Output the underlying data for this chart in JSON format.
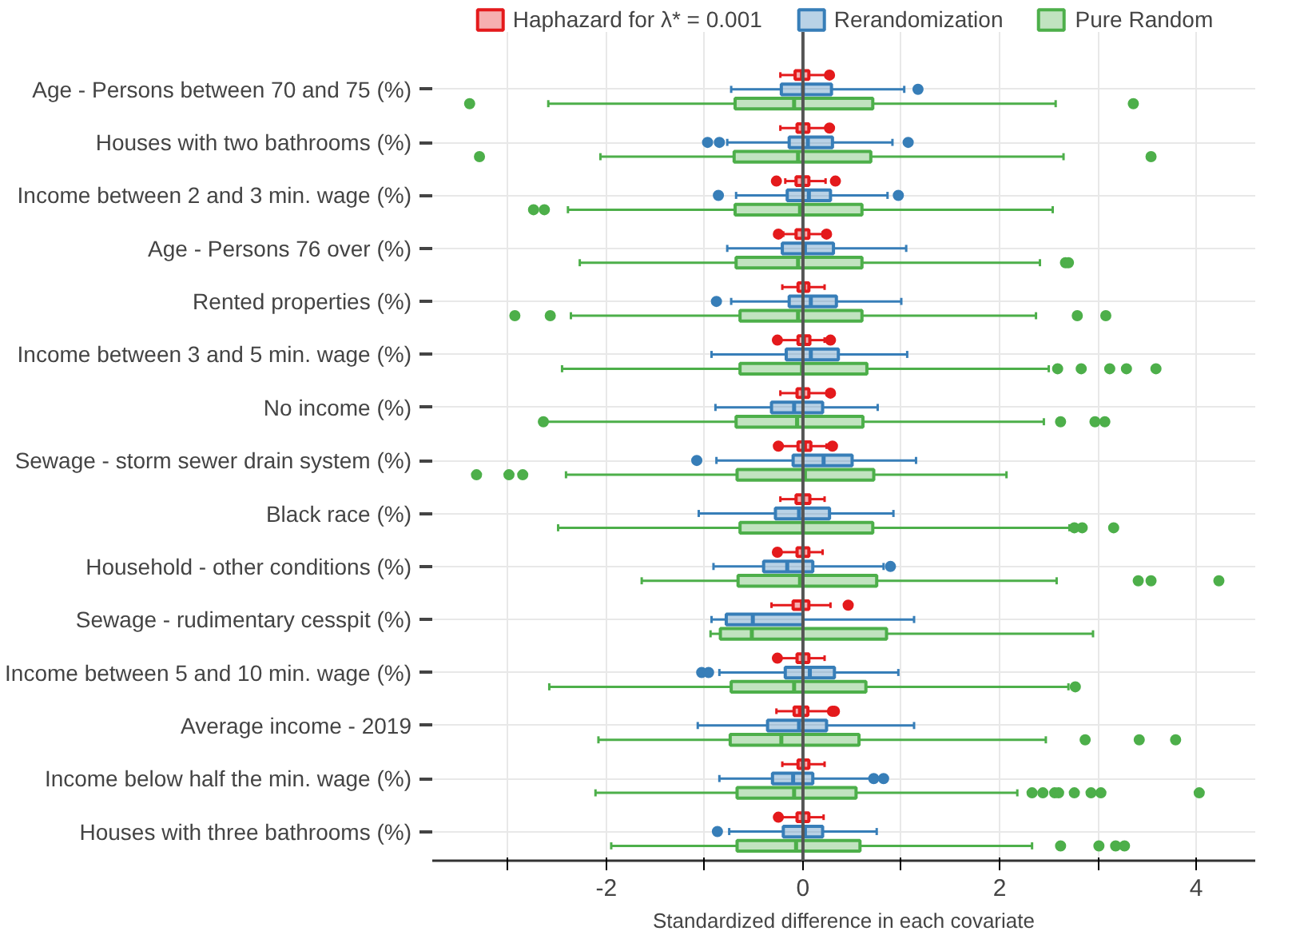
{
  "chart_data": {
    "type": "box",
    "orientation": "horizontal",
    "xlabel": "Standardized difference in each covariate",
    "categories": [
      "Age - Persons between 70 and 75 (%)",
      "Houses with two bathrooms (%)",
      "Income between 2 and 3 min. wage (%)",
      "Age - Persons 76 over (%)",
      "Rented properties (%)",
      "Income between 3 and 5 min. wage (%)",
      "No income (%)",
      "Sewage - storm sewer drain system (%)",
      "Black race (%)",
      "Household - other conditions (%)",
      "Sewage - rudimentary cesspit (%)",
      "Income between 5 and 10 min. wage (%)",
      "Average income - 2019",
      "Income below half the min. wage (%)",
      "Houses with three bathrooms (%)"
    ],
    "xlim": [
      -3.77,
      4.6
    ],
    "xticks": [
      {
        "value": -3,
        "label": null
      },
      -2,
      {
        "value": -1,
        "label": null
      },
      0,
      {
        "value": 1,
        "label": null
      },
      2,
      {
        "value": 3,
        "label": null
      },
      4
    ],
    "grid": true,
    "legend": "top",
    "ref_lines": [
      {
        "axis": "x",
        "value": 0,
        "color": "#555555"
      }
    ],
    "series": [
      {
        "name": "Haphazard for λ* = 0.001",
        "color": "#e41a1c",
        "boxes": [
          {
            "low": -0.23,
            "q1": -0.08,
            "median": -0.01,
            "q3": 0.06,
            "high": 0.25,
            "outliers": [
              0.27
            ]
          },
          {
            "low": -0.23,
            "q1": -0.06,
            "median": 0.0,
            "q3": 0.06,
            "high": 0.26,
            "outliers": [
              0.27
            ]
          },
          {
            "low": -0.18,
            "q1": -0.07,
            "median": 0.0,
            "q3": 0.06,
            "high": 0.23,
            "outliers": [
              -0.27,
              0.33
            ]
          },
          {
            "low": -0.2,
            "q1": -0.07,
            "median": 0.0,
            "q3": 0.06,
            "high": 0.2,
            "outliers": [
              -0.25,
              0.24
            ]
          },
          {
            "low": -0.21,
            "q1": -0.05,
            "median": 0.01,
            "q3": 0.06,
            "high": 0.22
          },
          {
            "low": -0.24,
            "q1": -0.05,
            "median": 0.01,
            "q3": 0.07,
            "high": 0.22,
            "outliers": [
              -0.26,
              0.28
            ]
          },
          {
            "low": -0.23,
            "q1": -0.06,
            "median": 0.0,
            "q3": 0.06,
            "high": 0.24,
            "outliers": [
              0.28
            ]
          },
          {
            "low": -0.24,
            "q1": -0.05,
            "median": 0.02,
            "q3": 0.08,
            "high": 0.24,
            "outliers": [
              -0.25,
              0.3
            ]
          },
          {
            "low": -0.23,
            "q1": -0.07,
            "median": 0.0,
            "q3": 0.07,
            "high": 0.22
          },
          {
            "low": -0.25,
            "q1": -0.06,
            "median": 0.0,
            "q3": 0.06,
            "high": 0.2,
            "outliers": [
              -0.26
            ]
          },
          {
            "low": -0.32,
            "q1": -0.1,
            "median": -0.01,
            "q3": 0.06,
            "high": 0.28,
            "outliers": [
              0.46
            ]
          },
          {
            "low": -0.24,
            "q1": -0.06,
            "median": 0.0,
            "q3": 0.06,
            "high": 0.22,
            "outliers": [
              -0.26
            ]
          },
          {
            "low": -0.27,
            "q1": -0.09,
            "median": -0.03,
            "q3": 0.05,
            "high": 0.27,
            "outliers": [
              0.3,
              0.32
            ]
          },
          {
            "low": -0.21,
            "q1": -0.05,
            "median": 0.0,
            "q3": 0.06,
            "high": 0.22
          },
          {
            "low": -0.23,
            "q1": -0.06,
            "median": 0.0,
            "q3": 0.06,
            "high": 0.21,
            "outliers": [
              -0.25
            ]
          }
        ]
      },
      {
        "name": "Rerandomization",
        "color": "#377eb8",
        "boxes": [
          {
            "low": -0.73,
            "q1": -0.22,
            "median": 0.0,
            "q3": 0.29,
            "high": 1.03,
            "outliers": [
              1.17
            ]
          },
          {
            "low": -0.77,
            "q1": -0.14,
            "median": 0.05,
            "q3": 0.3,
            "high": 0.91,
            "outliers": [
              -0.97,
              -0.85,
              1.07
            ]
          },
          {
            "low": -0.68,
            "q1": -0.16,
            "median": 0.06,
            "q3": 0.28,
            "high": 0.86,
            "outliers": [
              -0.86,
              0.97
            ]
          },
          {
            "low": -0.77,
            "q1": -0.21,
            "median": 0.02,
            "q3": 0.31,
            "high": 1.05
          },
          {
            "low": -0.73,
            "q1": -0.14,
            "median": 0.08,
            "q3": 0.34,
            "high": 1.0,
            "outliers": [
              -0.88
            ]
          },
          {
            "low": -0.93,
            "q1": -0.17,
            "median": 0.08,
            "q3": 0.36,
            "high": 1.06
          },
          {
            "low": -0.89,
            "q1": -0.32,
            "median": -0.09,
            "q3": 0.2,
            "high": 0.76
          },
          {
            "low": -0.88,
            "q1": -0.1,
            "median": 0.21,
            "q3": 0.5,
            "high": 1.15,
            "outliers": [
              -1.08
            ]
          },
          {
            "low": -1.06,
            "q1": -0.28,
            "median": -0.04,
            "q3": 0.27,
            "high": 0.92
          },
          {
            "low": -0.91,
            "q1": -0.4,
            "median": -0.16,
            "q3": 0.1,
            "high": 0.82,
            "outliers": [
              0.89
            ]
          },
          {
            "low": -0.93,
            "q1": -0.78,
            "median": -0.51,
            "q3": 0.0,
            "high": 1.13
          },
          {
            "low": -0.85,
            "q1": -0.18,
            "median": 0.07,
            "q3": 0.32,
            "high": 0.97,
            "outliers": [
              -1.03,
              -0.96
            ]
          },
          {
            "low": -1.07,
            "q1": -0.36,
            "median": -0.04,
            "q3": 0.24,
            "high": 1.13
          },
          {
            "low": -0.85,
            "q1": -0.31,
            "median": -0.1,
            "q3": 0.1,
            "high": 0.69,
            "outliers": [
              0.72,
              0.82
            ]
          },
          {
            "low": -0.75,
            "q1": -0.2,
            "median": 0.02,
            "q3": 0.2,
            "high": 0.75,
            "outliers": [
              -0.87
            ]
          }
        ]
      },
      {
        "name": "Pure Random",
        "color": "#4daf4a",
        "boxes": [
          {
            "low": -2.59,
            "q1": -0.69,
            "median": -0.09,
            "q3": 0.71,
            "high": 2.57,
            "outliers": [
              -3.39,
              3.36
            ]
          },
          {
            "low": -2.06,
            "q1": -0.7,
            "median": -0.05,
            "q3": 0.69,
            "high": 2.65,
            "outliers": [
              -3.29,
              3.54
            ]
          },
          {
            "low": -2.39,
            "q1": -0.69,
            "median": -0.03,
            "q3": 0.6,
            "high": 2.54,
            "outliers": [
              -2.74,
              -2.63
            ]
          },
          {
            "low": -2.27,
            "q1": -0.68,
            "median": -0.05,
            "q3": 0.6,
            "high": 2.41,
            "outliers": [
              2.67,
              2.7
            ]
          },
          {
            "low": -2.36,
            "q1": -0.64,
            "median": -0.05,
            "q3": 0.6,
            "high": 2.37,
            "outliers": [
              -2.93,
              -2.57,
              2.79,
              3.08
            ]
          },
          {
            "low": -2.45,
            "q1": -0.64,
            "median": -0.01,
            "q3": 0.65,
            "high": 2.5,
            "outliers": [
              2.59,
              2.83,
              3.12,
              3.29,
              3.59
            ]
          },
          {
            "low": -2.62,
            "q1": -0.68,
            "median": -0.06,
            "q3": 0.61,
            "high": 2.45,
            "outliers": [
              -2.64,
              2.62,
              2.97,
              3.07
            ]
          },
          {
            "low": -2.41,
            "q1": -0.67,
            "median": 0.02,
            "q3": 0.72,
            "high": 2.07,
            "outliers": [
              -3.32,
              -2.99,
              -2.85
            ]
          },
          {
            "low": -2.49,
            "q1": -0.64,
            "median": 0.0,
            "q3": 0.71,
            "high": 2.71,
            "outliers": [
              2.76,
              2.84,
              3.16
            ]
          },
          {
            "low": -1.64,
            "q1": -0.66,
            "median": -0.03,
            "q3": 0.75,
            "high": 2.58,
            "outliers": [
              3.41,
              3.54,
              4.23
            ]
          },
          {
            "low": -0.94,
            "q1": -0.84,
            "median": -0.52,
            "q3": 0.85,
            "high": 2.95
          },
          {
            "low": -2.58,
            "q1": -0.73,
            "median": -0.09,
            "q3": 0.64,
            "high": 2.7,
            "outliers": [
              2.77
            ]
          },
          {
            "low": -2.08,
            "q1": -0.74,
            "median": -0.22,
            "q3": 0.57,
            "high": 2.47,
            "outliers": [
              2.87,
              3.42,
              3.79
            ]
          },
          {
            "low": -2.11,
            "q1": -0.67,
            "median": -0.09,
            "q3": 0.54,
            "high": 2.18,
            "outliers": [
              2.33,
              2.44,
              2.56,
              2.6,
              2.76,
              2.93,
              3.03,
              4.03
            ]
          },
          {
            "low": -1.95,
            "q1": -0.67,
            "median": -0.07,
            "q3": 0.58,
            "high": 2.33,
            "outliers": [
              2.62,
              3.01,
              3.18,
              3.27
            ]
          }
        ]
      }
    ]
  }
}
